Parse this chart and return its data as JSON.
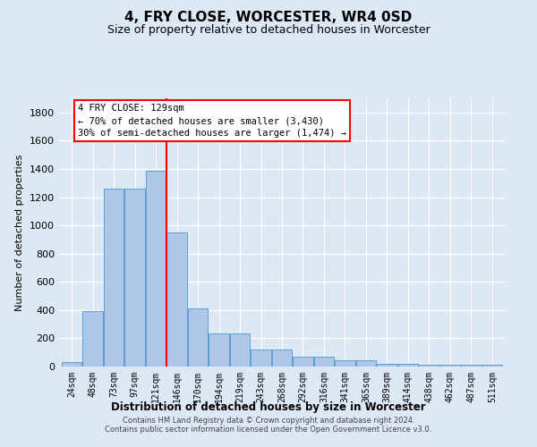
{
  "title": "4, FRY CLOSE, WORCESTER, WR4 0SD",
  "subtitle": "Size of property relative to detached houses in Worcester",
  "xlabel": "Distribution of detached houses by size in Worcester",
  "ylabel": "Number of detached properties",
  "footer1": "Contains HM Land Registry data © Crown copyright and database right 2024.",
  "footer2": "Contains public sector information licensed under the Open Government Licence v3.0.",
  "categories": [
    "24sqm",
    "48sqm",
    "73sqm",
    "97sqm",
    "121sqm",
    "146sqm",
    "170sqm",
    "194sqm",
    "219sqm",
    "243sqm",
    "268sqm",
    "292sqm",
    "316sqm",
    "341sqm",
    "365sqm",
    "389sqm",
    "414sqm",
    "438sqm",
    "462sqm",
    "487sqm",
    "511sqm"
  ],
  "values": [
    30,
    390,
    1260,
    1260,
    1390,
    950,
    410,
    235,
    235,
    120,
    120,
    70,
    70,
    45,
    45,
    20,
    20,
    15,
    15,
    15,
    15
  ],
  "bar_color": "#aec6e8",
  "bar_edge_color": "#5a9fd4",
  "vline_x": 4.5,
  "vline_color": "red",
  "annotation_title": "4 FRY CLOSE: 129sqm",
  "annotation_line1": "← 70% of detached houses are smaller (3,430)",
  "annotation_line2": "30% of semi-detached houses are larger (1,474) →",
  "annotation_box_color": "white",
  "annotation_box_edge_color": "red",
  "ylim": [
    0,
    1900
  ],
  "yticks": [
    0,
    200,
    400,
    600,
    800,
    1000,
    1200,
    1400,
    1600,
    1800
  ],
  "background_color": "#dde8f5",
  "grid_color": "white"
}
